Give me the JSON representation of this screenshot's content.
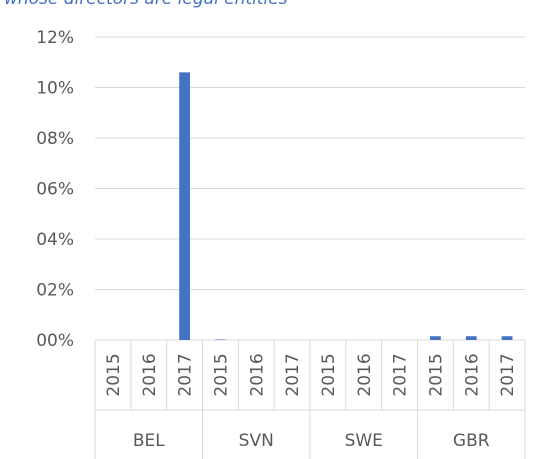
{
  "chart_data": {
    "type": "bar",
    "title": "whose directors are legal entities",
    "groups": [
      "BEL",
      "SVN",
      "SWE",
      "GBR"
    ],
    "categories": [
      "2015",
      "2016",
      "2017",
      "2015",
      "2016",
      "2017",
      "2015",
      "2016",
      "2017",
      "2015",
      "2016",
      "2017"
    ],
    "values": [
      0,
      0,
      10.6,
      0.02,
      0,
      0,
      0,
      0,
      0,
      0.15,
      0.15,
      0.15
    ],
    "color": "#4472c4",
    "ylim": [
      0,
      12
    ],
    "yticks": [
      {
        "value": 0,
        "label": "00%"
      },
      {
        "value": 2,
        "label": "02%"
      },
      {
        "value": 4,
        "label": "04%"
      },
      {
        "value": 6,
        "label": "06%"
      },
      {
        "value": 8,
        "label": "08%"
      },
      {
        "value": 10,
        "label": "10%"
      },
      {
        "value": 12,
        "label": "12%"
      }
    ],
    "grid": true
  }
}
